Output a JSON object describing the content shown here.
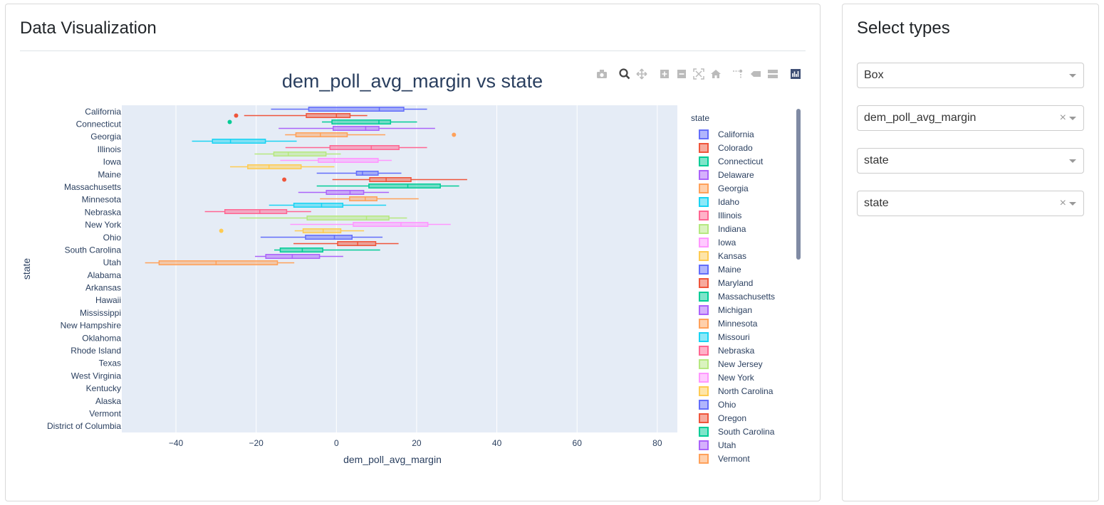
{
  "viz_panel": {
    "title": "Data Visualization"
  },
  "controls_panel": {
    "title": "Select types",
    "dropdowns": [
      {
        "value": "Box",
        "clearable": false
      },
      {
        "value": "dem_poll_avg_margin",
        "clearable": true
      },
      {
        "value": "state",
        "clearable": false
      },
      {
        "value": "state",
        "clearable": true
      }
    ],
    "clear_glyph": "×"
  },
  "modebar": [
    "camera-icon",
    "zoom-icon",
    "pan-icon",
    "zoom-in-icon",
    "zoom-out-icon",
    "autoscale-icon",
    "reset-axes-icon",
    "spike-lines-icon",
    "hover-closest-icon",
    "hover-compare-icon",
    "plotly-logo-icon"
  ],
  "chart_data": {
    "type": "box",
    "title": "dem_poll_avg_margin vs state",
    "xlabel": "dem_poll_avg_margin",
    "ylabel": "state",
    "xlim": [
      -53.5,
      85
    ],
    "xticks": [
      -40,
      -20,
      0,
      20,
      40,
      60,
      80
    ],
    "xtick_labels": [
      "−40",
      "−20",
      "0",
      "20",
      "40",
      "60",
      "80"
    ],
    "ytick_labels": [
      "California",
      "Connecticut",
      "Georgia",
      "Illinois",
      "Iowa",
      "Maine",
      "Massachusetts",
      "Minnesota",
      "Nebraska",
      "New York",
      "Ohio",
      "South Carolina",
      "Utah",
      "Alabama",
      "Arkansas",
      "Hawaii",
      "Mississippi",
      "New Hampshire",
      "Oklahoma",
      "Rhode Island",
      "Texas",
      "West Virginia",
      "Kentucky",
      "Alaska",
      "Vermont",
      "District of Columbia"
    ],
    "legend_title": "state",
    "legend_position": "right",
    "palette": [
      "#636efa",
      "#EF553B",
      "#00cc96",
      "#ab63fa",
      "#FFA15A",
      "#19d3f3",
      "#FF6692",
      "#B6E880",
      "#FF97FF",
      "#FECB52"
    ],
    "series": [
      {
        "name": "California",
        "stats": [
          -16.3,
          -6.9,
          10.7,
          16.8,
          22.6
        ],
        "outliers": []
      },
      {
        "name": "Colorado",
        "stats": [
          -23,
          -7.5,
          0,
          3.4,
          7.7
        ],
        "outliers": [
          -25
        ]
      },
      {
        "name": "Connecticut",
        "stats": [
          -3.6,
          -1.1,
          10.6,
          13.5,
          20.1
        ],
        "outliers": [
          -26.6
        ]
      },
      {
        "name": "Delaware",
        "stats": [
          -14.4,
          -0.8,
          7.3,
          10.6,
          24.6
        ],
        "outliers": []
      },
      {
        "name": "Georgia",
        "stats": [
          -12.8,
          -10.1,
          -4,
          2.7,
          12.2
        ],
        "outliers": [
          29.3
        ]
      },
      {
        "name": "Idaho",
        "stats": [
          -36,
          -30.9,
          -26.4,
          -17.7,
          -9.9
        ],
        "outliers": []
      },
      {
        "name": "Illinois",
        "stats": [
          -12.7,
          -1.6,
          8.7,
          15.6,
          22.6
        ],
        "outliers": []
      },
      {
        "name": "Indiana",
        "stats": [
          -20.4,
          -15.6,
          -12,
          -2.6,
          1.1
        ],
        "outliers": []
      },
      {
        "name": "Iowa",
        "stats": [
          -14,
          -4.5,
          -0.5,
          10.4,
          13.8
        ],
        "outliers": []
      },
      {
        "name": "Kansas",
        "stats": [
          -26.5,
          -22.1,
          -16.8,
          -8.8,
          -0.5
        ],
        "outliers": []
      },
      {
        "name": "Maine",
        "stats": [
          -4.9,
          5,
          6.5,
          10.4,
          16.2
        ],
        "outliers": []
      },
      {
        "name": "Maryland",
        "stats": [
          -1,
          8.3,
          12.4,
          18.6,
          32.6
        ],
        "outliers": [
          -13
        ]
      },
      {
        "name": "Massachusetts",
        "stats": [
          -4.9,
          8.1,
          17.8,
          25.9,
          30.6
        ],
        "outliers": []
      },
      {
        "name": "Michigan",
        "stats": [
          -9.5,
          -2.5,
          3.4,
          6.8,
          13.1
        ],
        "outliers": []
      },
      {
        "name": "Minnesota",
        "stats": [
          -4.1,
          3.3,
          7.2,
          10.1,
          20.5
        ],
        "outliers": []
      },
      {
        "name": "Missouri",
        "stats": [
          -16.8,
          -10.6,
          -3.7,
          1.6,
          12.4
        ],
        "outliers": []
      },
      {
        "name": "Nebraska",
        "stats": [
          -32.8,
          -27.8,
          -19.1,
          -12.4,
          -6.3
        ],
        "outliers": []
      },
      {
        "name": "New Jersey",
        "stats": [
          -24.1,
          -7.3,
          7.5,
          13.1,
          17.6
        ],
        "outliers": []
      },
      {
        "name": "New York",
        "stats": [
          -11.5,
          4.2,
          16.1,
          22.8,
          28.5
        ],
        "outliers": []
      },
      {
        "name": "North Carolina",
        "stats": [
          -10.4,
          -8.3,
          -3.3,
          1.1,
          6.9
        ],
        "outliers": [
          -28.7
        ]
      },
      {
        "name": "Ohio",
        "stats": [
          -18.9,
          -7.7,
          -0.5,
          3.9,
          11.5
        ],
        "outliers": []
      },
      {
        "name": "Oregon",
        "stats": [
          -10.7,
          0.3,
          5.3,
          9.8,
          15.5
        ],
        "outliers": []
      },
      {
        "name": "South Carolina",
        "stats": [
          -15.5,
          -14,
          -8.5,
          -3.4,
          10.9
        ],
        "outliers": []
      },
      {
        "name": "Utah",
        "stats": [
          -20.3,
          -17.6,
          -11,
          -4.2,
          1.7
        ],
        "outliers": []
      },
      {
        "name": "Vermont",
        "stats": [
          -47.7,
          -44.2,
          -30,
          -14.7,
          -10.5
        ],
        "outliers": []
      }
    ]
  }
}
